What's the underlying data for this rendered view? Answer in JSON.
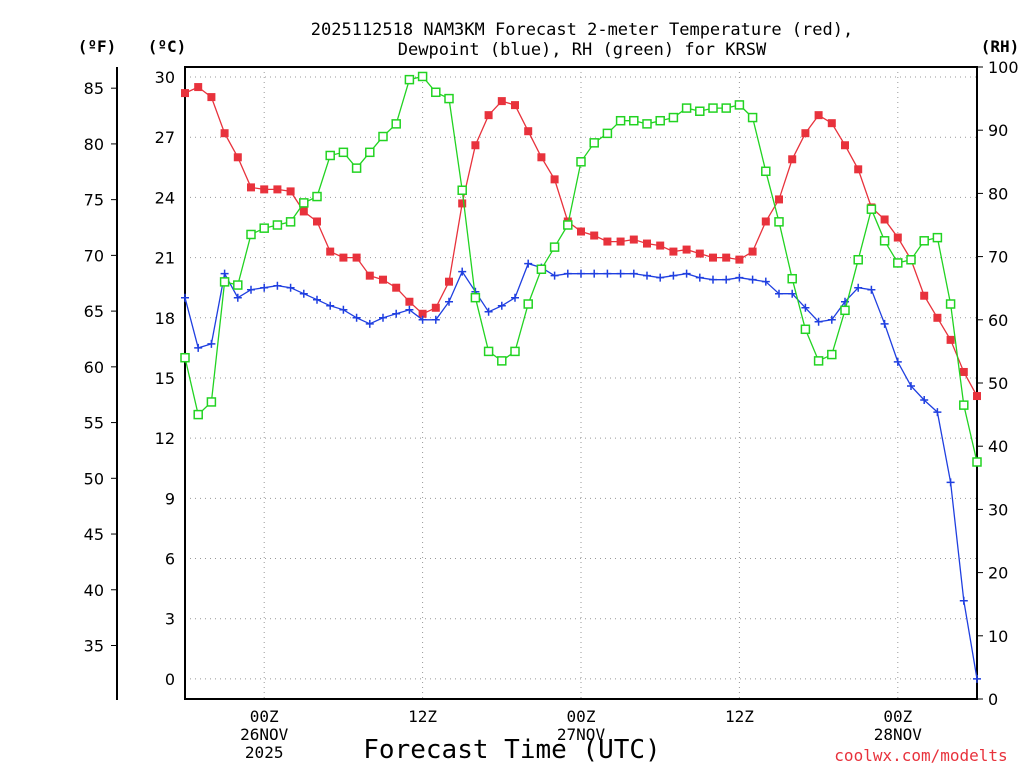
{
  "chart_data": {
    "type": "line",
    "title_line1": "2025112518 NAM3KM Forecast 2-meter Temperature (red),",
    "title_line2": "Dewpoint (blue), RH (green) for KRSW",
    "xlabel": "Forecast Time (UTC)",
    "credit": "coolwx.com/modelts",
    "x_range_hours": [
      0,
      60
    ],
    "grid": true,
    "axes": {
      "fahrenheit": {
        "unit_label": "(ºF)",
        "ticks": [
          35,
          40,
          45,
          50,
          55,
          60,
          65,
          70,
          75,
          80,
          85
        ]
      },
      "celsius": {
        "unit_label": "(ºC)",
        "ylim": [
          -1,
          30.5
        ],
        "ticks": [
          0,
          3,
          6,
          9,
          12,
          15,
          18,
          21,
          24,
          27,
          30
        ]
      },
      "rh": {
        "unit_label": "(RH)",
        "ylim": [
          0,
          100
        ],
        "ticks": [
          0,
          10,
          20,
          30,
          40,
          50,
          60,
          70,
          80,
          90,
          100
        ]
      }
    },
    "x_ticks": [
      {
        "hour": 6,
        "lines": [
          "00Z",
          "26NOV",
          "2025"
        ]
      },
      {
        "hour": 18,
        "lines": [
          "12Z"
        ]
      },
      {
        "hour": 30,
        "lines": [
          "00Z",
          "27NOV"
        ]
      },
      {
        "hour": 42,
        "lines": [
          "12Z"
        ]
      },
      {
        "hour": 54,
        "lines": [
          "00Z",
          "28NOV"
        ]
      }
    ],
    "series": [
      {
        "name": "Temperature",
        "color": "#e8323c",
        "marker": "filled-square",
        "axis": "celsius",
        "values": [
          29.2,
          29.5,
          29,
          27.2,
          26,
          24.5,
          24.4,
          24.4,
          24.3,
          23.3,
          22.8,
          21.3,
          21,
          21,
          20.1,
          19.9,
          19.5,
          18.8,
          18.2,
          18.5,
          19.8,
          23.7,
          26.6,
          28.1,
          28.8,
          28.6,
          27.3,
          26,
          24.9,
          22.8,
          22.3,
          22.1,
          21.8,
          21.8,
          21.9,
          21.7,
          21.6,
          21.3,
          21.4,
          21.2,
          21,
          21,
          20.9,
          21.3,
          22.8,
          23.9,
          25.9,
          27.2,
          28.1,
          27.7,
          26.6,
          25.4,
          23.5,
          22.9,
          22,
          20.9,
          19.1,
          18,
          16.9,
          15.3,
          14.1
        ]
      },
      {
        "name": "Dewpoint",
        "color": "#1f3fe0",
        "marker": "plus",
        "axis": "celsius",
        "values": [
          19,
          16.5,
          16.7,
          20.2,
          19,
          19.4,
          19.5,
          19.6,
          19.5,
          19.2,
          18.9,
          18.6,
          18.4,
          18,
          17.7,
          18,
          18.2,
          18.4,
          17.9,
          17.9,
          18.8,
          20.3,
          19.3,
          18.3,
          18.6,
          19,
          20.7,
          20.5,
          20.1,
          20.2,
          20.2,
          20.2,
          20.2,
          20.2,
          20.2,
          20.1,
          20,
          20.1,
          20.2,
          20,
          19.9,
          19.9,
          20,
          19.9,
          19.8,
          19.2,
          19.2,
          18.5,
          17.8,
          17.9,
          18.8,
          19.5,
          19.4,
          17.7,
          15.8,
          14.6,
          13.9,
          13.3,
          9.8,
          3.9,
          0
        ]
      },
      {
        "name": "RH",
        "color": "#22d322",
        "marker": "open-square",
        "axis": "rh",
        "values": [
          54,
          45,
          47,
          66,
          65.5,
          73.5,
          74.5,
          75,
          75.5,
          78.5,
          79.5,
          86,
          86.5,
          84,
          86.5,
          89,
          91,
          98,
          98.5,
          96,
          95,
          80.5,
          63.5,
          55,
          53.5,
          55,
          62.5,
          68,
          71.5,
          75,
          85,
          88,
          89.5,
          91.5,
          91.5,
          91,
          91.5,
          92,
          93.5,
          93,
          93.5,
          93.5,
          94,
          92,
          83.5,
          75.5,
          66.5,
          58.5,
          53.5,
          54.5,
          61.5,
          69.5,
          77.5,
          72.5,
          69,
          69.5,
          72.5,
          73,
          62.5,
          46.5,
          37.5
        ]
      }
    ]
  }
}
